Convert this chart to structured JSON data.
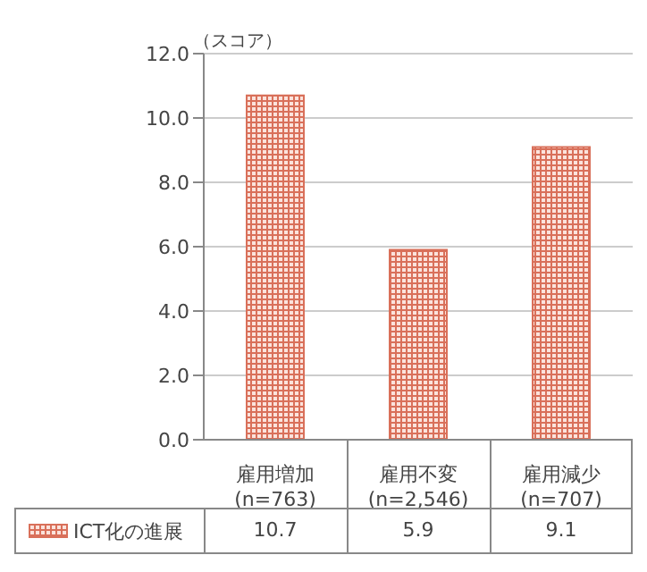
{
  "chart_data": {
    "type": "bar",
    "ylabel": "（スコア）",
    "categories": [
      "雇用増加\n(n=763)",
      "雇用不変\n(n=2,546)",
      "雇用減少\n(n=707)"
    ],
    "series": [
      {
        "name": "ICT化の進展",
        "color": "#d9705a",
        "values": [
          10.7,
          5.9,
          9.1
        ]
      }
    ],
    "ylim": [
      0,
      12
    ],
    "yticks": [
      {
        "value": 0,
        "label": "0.0"
      },
      {
        "value": 2,
        "label": "2.0"
      },
      {
        "value": 4,
        "label": "4.0"
      },
      {
        "value": 6,
        "label": "6.0"
      },
      {
        "value": 8,
        "label": "8.0"
      },
      {
        "value": 10,
        "label": "10.0"
      },
      {
        "value": 12,
        "label": "12.0"
      }
    ],
    "grid": "y",
    "legend": "bottom",
    "data_labels": true
  }
}
